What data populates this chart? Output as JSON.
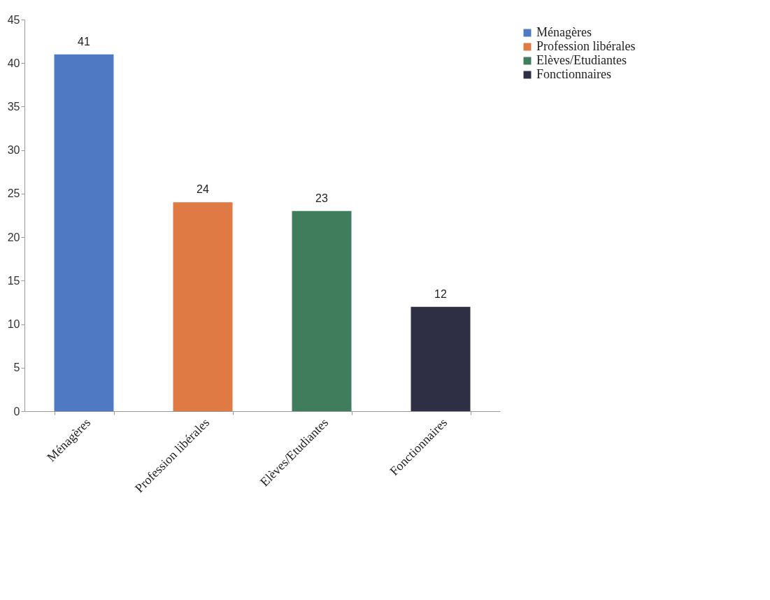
{
  "chart_data": {
    "type": "bar",
    "categories": [
      "Ménagères",
      "Profession libérales",
      "Elèves/Etudiantes",
      "Fonctionnaires"
    ],
    "series": [
      {
        "name": "Ménagères",
        "color": "#4f79c2",
        "values": [
          41,
          null,
          null,
          null
        ]
      },
      {
        "name": "Profession libérales",
        "color": "#e07a45",
        "values": [
          null,
          24,
          null,
          null
        ]
      },
      {
        "name": "Elèves/Etudiantes",
        "color": "#3f7d5c",
        "values": [
          null,
          null,
          23,
          null
        ]
      },
      {
        "name": "Fonctionnaires",
        "color": "#2e2e45",
        "values": [
          null,
          null,
          null,
          12
        ]
      }
    ],
    "ylim": [
      0,
      45
    ],
    "yticks": [
      0,
      5,
      10,
      15,
      20,
      25,
      30,
      35,
      40,
      45
    ],
    "grid": false,
    "legend": "right",
    "data_labels": true
  }
}
